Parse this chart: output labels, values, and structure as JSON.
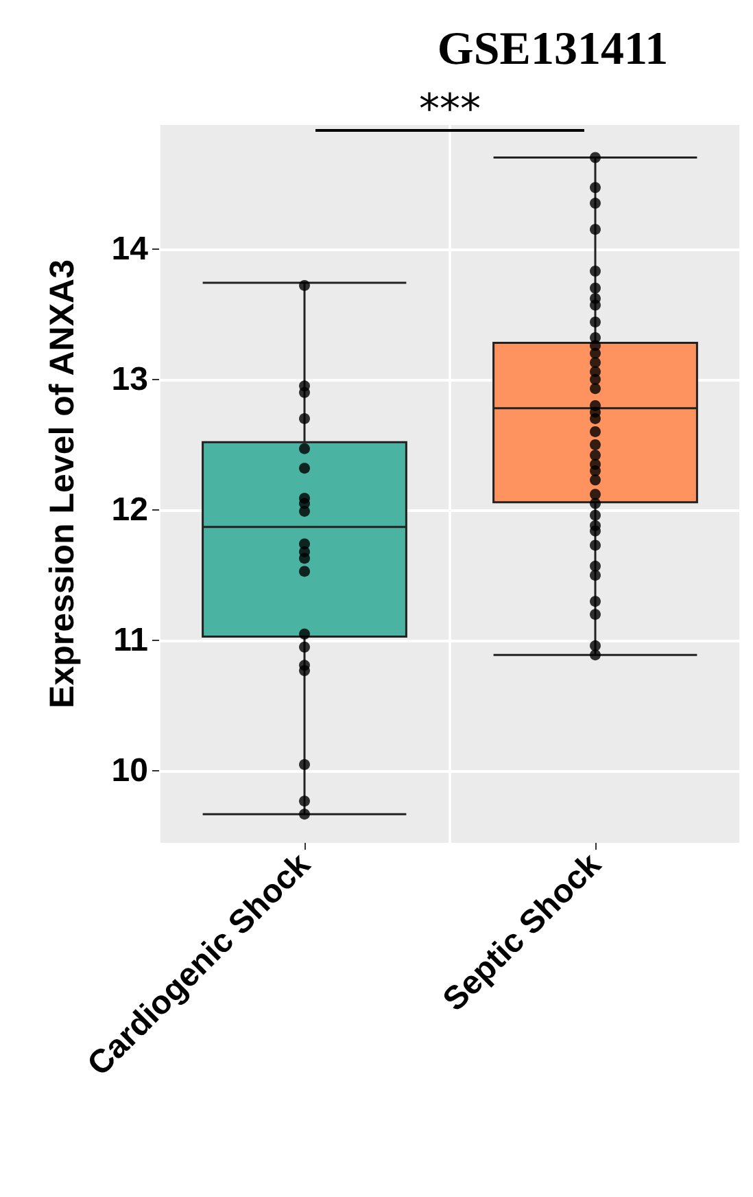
{
  "chart_data": {
    "type": "box",
    "title": "GSE131411",
    "ylabel": "Expression Level of ANXA3",
    "categories": [
      "Cardiogenic Shock",
      "Septic Shock"
    ],
    "colors": [
      "#4bb3a2",
      "#fe935f"
    ],
    "boxes": [
      {
        "low": 9.67,
        "q1": 11.03,
        "median": 11.87,
        "q3": 12.52,
        "high": 13.74
      },
      {
        "low": 10.89,
        "q1": 12.06,
        "median": 12.78,
        "q3": 13.28,
        "high": 14.7
      }
    ],
    "series": [
      {
        "type": "scatter",
        "color": "#000000",
        "x": [
          "Cardiogenic Shock",
          "Cardiogenic Shock",
          "Cardiogenic Shock",
          "Cardiogenic Shock",
          "Cardiogenic Shock",
          "Cardiogenic Shock",
          "Cardiogenic Shock",
          "Cardiogenic Shock",
          "Cardiogenic Shock",
          "Cardiogenic Shock",
          "Cardiogenic Shock",
          "Cardiogenic Shock",
          "Cardiogenic Shock",
          "Cardiogenic Shock",
          "Cardiogenic Shock",
          "Cardiogenic Shock",
          "Cardiogenic Shock",
          "Cardiogenic Shock",
          "Cardiogenic Shock",
          "Cardiogenic Shock",
          "Cardiogenic Shock",
          "Cardiogenic Shock",
          "Cardiogenic Shock"
        ],
        "values": [
          13.72,
          12.95,
          12.9,
          null,
          null,
          12.7,
          12.47,
          null,
          12.32,
          12.09,
          12.05,
          11.99,
          11.74,
          11.68,
          11.63,
          11.53,
          11.05,
          10.95,
          10.81,
          10.77,
          10.05,
          9.77,
          9.67
        ]
      },
      {
        "type": "scatter",
        "color": "#000000",
        "x": [
          "Septic Shock",
          "Septic Shock",
          "Septic Shock",
          "Septic Shock",
          "Septic Shock",
          "Septic Shock",
          "Septic Shock",
          "Septic Shock",
          "Septic Shock",
          "Septic Shock",
          "Septic Shock",
          "Septic Shock",
          "Septic Shock",
          "Septic Shock",
          "Septic Shock",
          "Septic Shock",
          "Septic Shock",
          "Septic Shock",
          "Septic Shock",
          "Septic Shock",
          "Septic Shock",
          "Septic Shock",
          "Septic Shock",
          "Septic Shock",
          "Septic Shock",
          "Septic Shock",
          "Septic Shock",
          "Septic Shock",
          "Septic Shock",
          "Septic Shock",
          "Septic Shock",
          "Septic Shock",
          "Septic Shock",
          "Septic Shock",
          "Septic Shock",
          "Septic Shock",
          "Septic Shock"
        ],
        "values": [
          14.7,
          14.47,
          14.35,
          14.15,
          13.83,
          13.7,
          13.62,
          13.57,
          13.44,
          13.32,
          13.26,
          13.2,
          13.13,
          13.06,
          13.0,
          12.93,
          12.8,
          12.75,
          12.7,
          12.6,
          12.5,
          12.42,
          12.35,
          12.3,
          12.23,
          12.12,
          12.05,
          11.96,
          11.88,
          11.84,
          11.73,
          11.57,
          11.5,
          11.3,
          11.2,
          10.96,
          10.89
        ]
      }
    ],
    "ylim": [
      9.45,
      14.95
    ],
    "yticks": [
      10,
      11,
      12,
      13,
      14
    ],
    "grid": true,
    "marker": "circle",
    "annotations": [
      "***"
    ]
  }
}
